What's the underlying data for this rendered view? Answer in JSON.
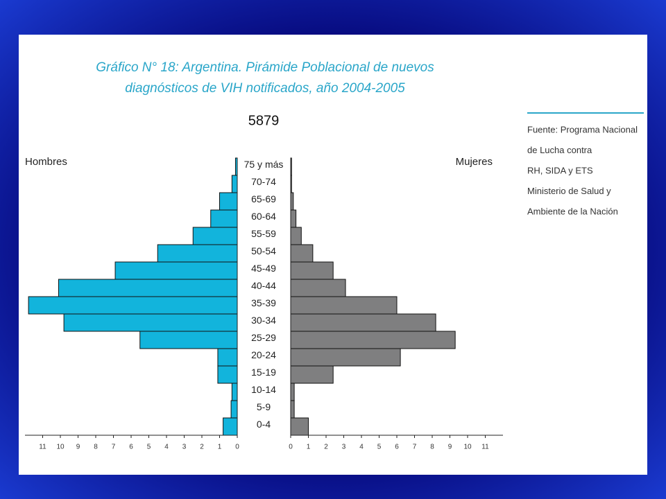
{
  "chart_data": {
    "type": "pyramid",
    "title": [
      "Gráfico N° 18: Argentina. Pirámide Poblacional de nuevos",
      "diagnósticos de  VIH notificados, año 2004-2005"
    ],
    "total": 5879,
    "categories": [
      "0-4",
      "5-9",
      "10-14",
      "15-19",
      "20-24",
      "25-29",
      "30-34",
      "35-39",
      "40-44",
      "45-49",
      "50-54",
      "55-59",
      "60-64",
      "65-69",
      "70-74",
      "75 y más"
    ],
    "series": [
      {
        "name": "Hombres",
        "color": "#12b4dc",
        "values": [
          0.8,
          0.35,
          0.3,
          1.1,
          1.1,
          5.5,
          9.8,
          11.8,
          10.1,
          6.9,
          4.5,
          2.5,
          1.5,
          1.0,
          0.3,
          0.1
        ]
      },
      {
        "name": "Mujeres",
        "color": "#7f7f80",
        "values": [
          1.0,
          0.2,
          0.2,
          2.4,
          6.2,
          9.3,
          8.2,
          6.0,
          3.1,
          2.4,
          1.25,
          0.6,
          0.3,
          0.15,
          0.05,
          0.05
        ]
      }
    ],
    "xlim": [
      0,
      12
    ],
    "xticks": [
      0,
      1,
      2,
      3,
      4,
      5,
      6,
      7,
      8,
      9,
      10,
      11
    ],
    "source": [
      "Fuente: Programa Nacional",
      "de Lucha contra",
      "RH, SIDA y ETS",
      "Ministerio de Salud y",
      "Ambiente de la Nación"
    ]
  }
}
